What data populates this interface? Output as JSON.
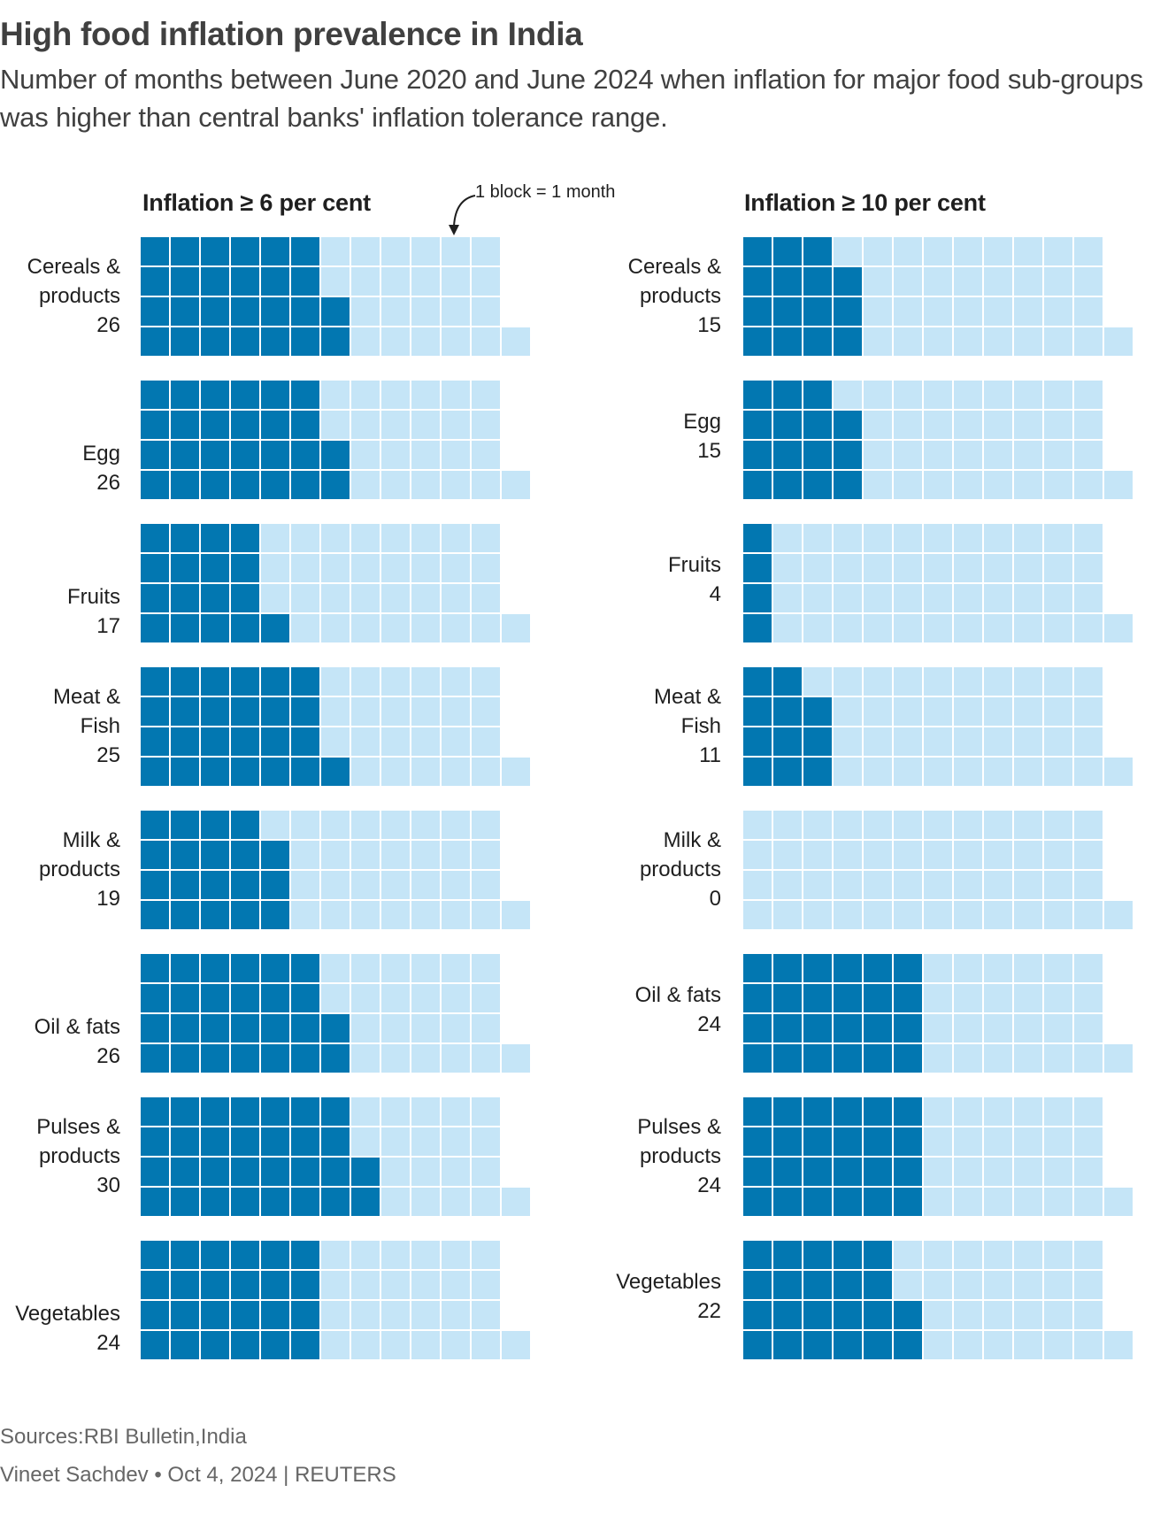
{
  "title": "High food inflation prevalence in India",
  "subtitle": "Number of months between June 2020 and June 2024 when inflation for major food sub-groups was higher than central banks' inflation tolerance range.",
  "annotation": "1 block = 1 month",
  "footer": {
    "sources": "Sources:RBI Bulletin,India",
    "byline": "Vineet Sachdev • Oct 4, 2024 | REUTERS"
  },
  "colors": {
    "filled": "#0277b1",
    "empty": "#c5e5f7",
    "gap": "#ffffff"
  },
  "chart_data": {
    "type": "waffle",
    "title": "High food inflation prevalence in India",
    "unit": "months (1 block = 1 month)",
    "total_blocks": 49,
    "grid": {
      "rows": 4,
      "fill_order": "column-wise, bottom to top, left to right"
    },
    "categories": [
      {
        "name": "Cereals & products",
        "lines": [
          "Cereals &",
          "products"
        ]
      },
      {
        "name": "Egg",
        "lines": [
          "Egg"
        ]
      },
      {
        "name": "Fruits",
        "lines": [
          "Fruits"
        ]
      },
      {
        "name": "Meat & Fish",
        "lines": [
          "Meat &",
          "Fish"
        ]
      },
      {
        "name": "Milk & products",
        "lines": [
          "Milk &",
          "products"
        ]
      },
      {
        "name": "Oil & fats",
        "lines": [
          "Oil & fats"
        ]
      },
      {
        "name": "Pulses & products",
        "lines": [
          "Pulses &",
          "products"
        ]
      },
      {
        "name": "Vegetables",
        "lines": [
          "Vegetables"
        ]
      }
    ],
    "series": [
      {
        "name": "Inflation ≥ 6 per cent",
        "values": [
          26,
          26,
          17,
          25,
          19,
          26,
          30,
          24
        ]
      },
      {
        "name": "Inflation ≥ 10 per cent",
        "values": [
          15,
          15,
          4,
          11,
          0,
          24,
          24,
          22
        ]
      }
    ]
  }
}
